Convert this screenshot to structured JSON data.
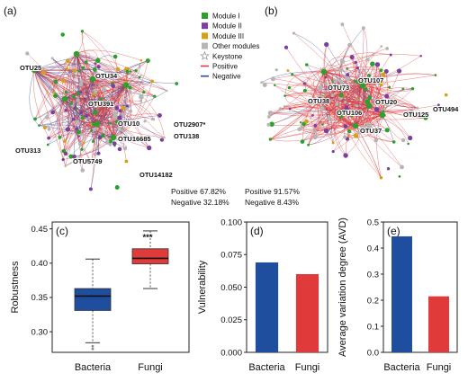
{
  "networks": {
    "legend": [
      {
        "label": "Module I",
        "color": "#2ca02c",
        "shape": "square"
      },
      {
        "label": "Module II",
        "color": "#7b3f9e",
        "shape": "square"
      },
      {
        "label": "Module III",
        "color": "#d4a017",
        "shape": "square"
      },
      {
        "label": "Other modules",
        "color": "#b5b5b5",
        "shape": "square"
      },
      {
        "label": "Keystone",
        "color": "#999999",
        "shape": "star"
      },
      {
        "label": "Positive",
        "color": "#e03a3a",
        "shape": "line"
      },
      {
        "label": "Negative",
        "color": "#2b4a9e",
        "shape": "line"
      }
    ],
    "panel_a": {
      "letter": "(a)",
      "labels": [
        "OTU25",
        "OTU34",
        "OTU391",
        "OTU10",
        "OTU16685",
        "OTU2907*",
        "OTU138",
        "OTU313",
        "OTU5749",
        "OTU14182"
      ],
      "positive_text": "Positive 67.82%",
      "negative_text": "Negative 32.18%"
    },
    "panel_b": {
      "letter": "(b)",
      "labels": [
        "OTU107",
        "OTU73",
        "OTU38",
        "OTU106",
        "OTU20",
        "OTU125",
        "OTU494",
        "OTU37"
      ],
      "positive_text": "Positive 91.57%",
      "negative_text": "Negative 8.43%"
    }
  },
  "chart_data": [
    {
      "panel": "(c)",
      "type": "box",
      "categories": [
        "Bacteria",
        "Fungi"
      ],
      "ylabel": "Robustness",
      "ylim": [
        0.27,
        0.46
      ],
      "yticks": [
        "0.30",
        "0.35",
        "0.40",
        "0.45"
      ],
      "yticks_values": [
        0.3,
        0.35,
        0.4,
        0.45
      ],
      "annotation": "***",
      "boxes": [
        {
          "name": "Bacteria",
          "color": "#1f4e9e",
          "whisker_low": 0.284,
          "q1": 0.331,
          "median": 0.352,
          "q3": 0.363,
          "whisker_high": 0.406,
          "outliers": [
            0.279,
            0.275
          ]
        },
        {
          "name": "Fungi",
          "color": "#e03a3a",
          "whisker_low": 0.363,
          "q1": 0.399,
          "median": 0.407,
          "q3": 0.421,
          "whisker_high": 0.447,
          "outliers": []
        }
      ]
    },
    {
      "panel": "(d)",
      "type": "bar",
      "categories": [
        "Bacteria",
        "Fungi"
      ],
      "values": [
        0.069,
        0.06
      ],
      "colors": [
        "#1f4e9e",
        "#e03a3a"
      ],
      "ylabel": "Vulnerability",
      "ylim": [
        0,
        0.1
      ],
      "yticks": [
        "0.000",
        "0.025",
        "0.050",
        "0.075",
        "0.100"
      ],
      "yticks_values": [
        0,
        0.025,
        0.05,
        0.075,
        0.1
      ]
    },
    {
      "panel": "(e)",
      "type": "bar",
      "categories": [
        "Bacteria",
        "Fungi"
      ],
      "values": [
        0.445,
        0.215
      ],
      "colors": [
        "#1f4e9e",
        "#e03a3a"
      ],
      "ylabel": "Average variation degree (AVD)",
      "ylim": [
        0,
        0.5
      ],
      "yticks": [
        "0.0",
        "0.1",
        "0.2",
        "0.3",
        "0.4",
        "0.5"
      ],
      "yticks_values": [
        0,
        0.1,
        0.2,
        0.3,
        0.4,
        0.5
      ]
    }
  ]
}
